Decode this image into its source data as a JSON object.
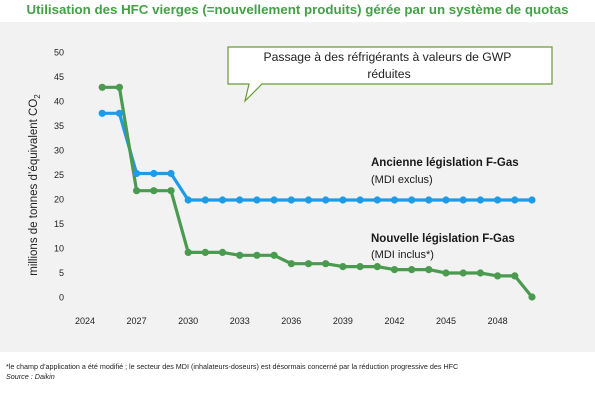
{
  "chart_data": {
    "type": "line",
    "title": "Utilisation des HFC vierges (=nouvellement produits) gérée par un système de quotas",
    "ylabel": "millions de tonnes d’équivalent CO",
    "ylabel_subscript": "2",
    "xlim": [
      2024,
      2050
    ],
    "ylim": [
      0,
      50
    ],
    "grid": false,
    "yticks": [
      0,
      5,
      10,
      15,
      20,
      25,
      30,
      35,
      40,
      45,
      50
    ],
    "xticks": [
      2024,
      2027,
      2030,
      2033,
      2036,
      2039,
      2042,
      2045,
      2048
    ],
    "xtick_labels": [
      "2024",
      "2027",
      "2030",
      "2033",
      "2036",
      "2039",
      "2042",
      "2045",
      "2048"
    ],
    "series": [
      {
        "name": "Ancienne législation F-Gas",
        "name_note": "(MDI exclus)",
        "color": "#1e9be6",
        "x": [
          2025,
          2026,
          2027,
          2028,
          2029,
          2030,
          2031,
          2032,
          2033,
          2034,
          2035,
          2036,
          2037,
          2038,
          2039,
          2040,
          2041,
          2042,
          2043,
          2044,
          2045,
          2046,
          2047,
          2048,
          2049,
          2050
        ],
        "values": [
          37.5,
          37.5,
          25.2,
          25.2,
          25.2,
          19.8,
          19.8,
          19.8,
          19.8,
          19.8,
          19.8,
          19.8,
          19.8,
          19.8,
          19.8,
          19.8,
          19.8,
          19.8,
          19.8,
          19.8,
          19.8,
          19.8,
          19.8,
          19.8,
          19.8,
          19.8
        ]
      },
      {
        "name": "Nouvelle législation F-Gas",
        "name_note": "(MDI inclus*)",
        "color": "#4a9a4f",
        "x": [
          2025,
          2026,
          2027,
          2028,
          2029,
          2030,
          2031,
          2032,
          2033,
          2034,
          2035,
          2036,
          2037,
          2038,
          2039,
          2040,
          2041,
          2042,
          2043,
          2044,
          2045,
          2046,
          2047,
          2048,
          2049,
          2050
        ],
        "values": [
          42.8,
          42.8,
          21.7,
          21.7,
          21.7,
          9.1,
          9.1,
          9.1,
          8.5,
          8.5,
          8.5,
          6.8,
          6.8,
          6.8,
          6.2,
          6.2,
          6.2,
          5.6,
          5.6,
          5.6,
          4.9,
          4.9,
          4.9,
          4.3,
          4.3,
          0.0
        ]
      }
    ],
    "annotation": "Passage à des réfrigérants à valeurs de GWP réduites"
  },
  "colors": {
    "title": "#43a047",
    "plot_background": "#f2f2f2",
    "callout_border": "#6a9a35",
    "series_label": "#1a1a1a"
  },
  "footnote": "*le champ d’application a été modifié ; le secteur des MDI (inhalateurs-doseurs) est désormais concerné par la réduction progressive des HFC",
  "source": "Source : Daikin"
}
